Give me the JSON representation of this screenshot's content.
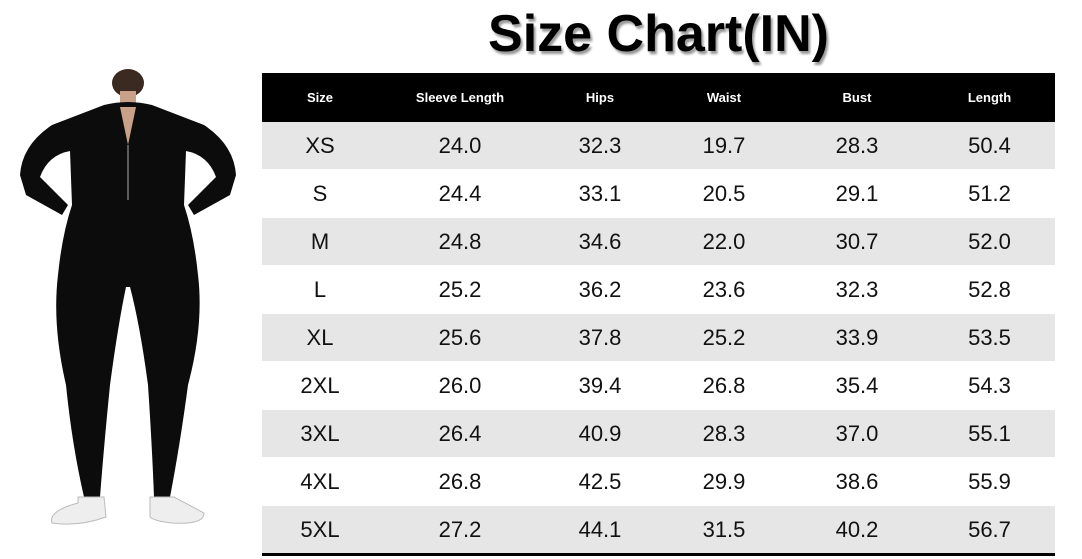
{
  "title": "Size Chart(IN)",
  "table": {
    "header": [
      "Size",
      "Sleeve Length",
      "Hips",
      "Waist",
      "Bust",
      "Length"
    ],
    "rows": [
      [
        "XS",
        "24.0",
        "32.3",
        "19.7",
        "28.3",
        "50.4"
      ],
      [
        "S",
        "24.4",
        "33.1",
        "20.5",
        "29.1",
        "51.2"
      ],
      [
        "M",
        "24.8",
        "34.6",
        "22.0",
        "30.7",
        "52.0"
      ],
      [
        "L",
        "25.2",
        "36.2",
        "23.6",
        "32.3",
        "52.8"
      ],
      [
        "XL",
        "25.6",
        "37.8",
        "25.2",
        "33.9",
        "53.5"
      ],
      [
        "2XL",
        "26.0",
        "39.4",
        "26.8",
        "35.4",
        "54.3"
      ],
      [
        "3XL",
        "26.4",
        "40.9",
        "28.3",
        "37.0",
        "55.1"
      ],
      [
        "4XL",
        "26.8",
        "42.5",
        "29.9",
        "38.6",
        "55.9"
      ],
      [
        "5XL",
        "27.2",
        "44.1",
        "31.5",
        "40.2",
        "56.7"
      ]
    ]
  }
}
